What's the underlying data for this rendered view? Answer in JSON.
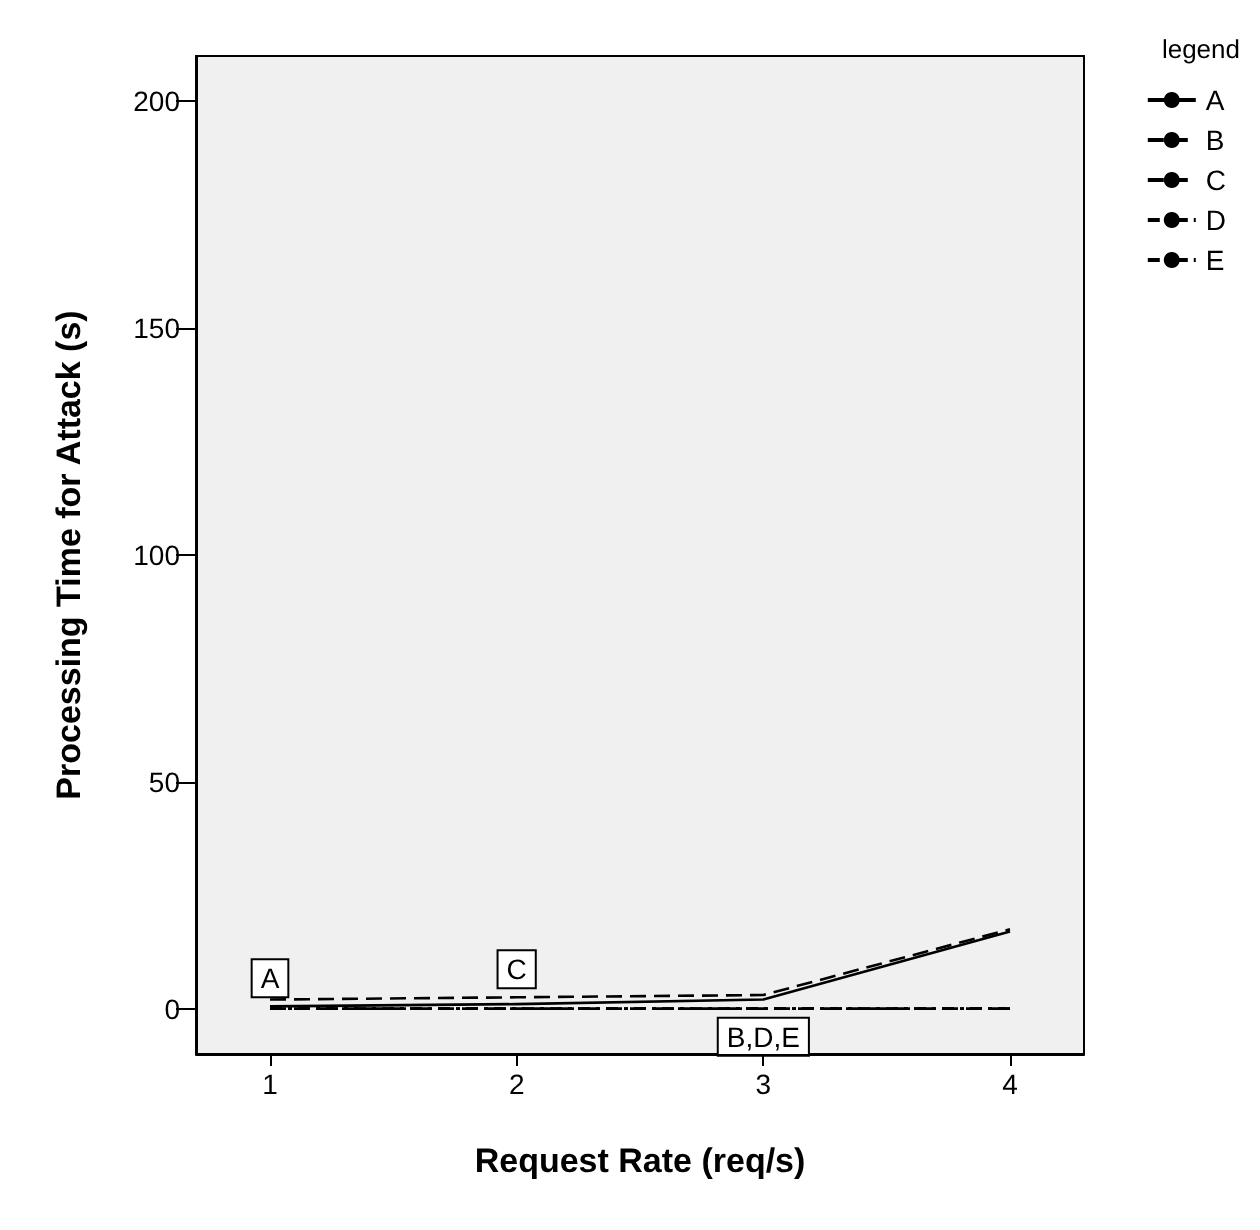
{
  "chart_data": {
    "type": "line",
    "xlabel": "Request Rate (req/s)",
    "ylabel": "Processing Time for Attack (s)",
    "legend_title": "legend",
    "legend": "top right",
    "x": [
      1,
      2,
      3,
      4
    ],
    "xlim": [
      0.7,
      4.3
    ],
    "xticks": [
      1,
      2,
      3,
      4
    ],
    "ylim": [
      -10,
      210
    ],
    "yticks": [
      0,
      50,
      100,
      150,
      200
    ],
    "grid": false,
    "series": [
      {
        "name": "A",
        "color": "#000000",
        "line_style": "solid",
        "values": [
          0.5,
          1,
          2,
          17
        ]
      },
      {
        "name": "B",
        "color": "#000000",
        "line_style": "dashed",
        "values": [
          0,
          0,
          0,
          0
        ]
      },
      {
        "name": "C",
        "color": "#000000",
        "line_style": "dashed",
        "values": [
          2,
          2.5,
          3,
          17.5
        ]
      },
      {
        "name": "D",
        "color": "#000000",
        "line_style": "dotted",
        "values": [
          0,
          0,
          0,
          0
        ]
      },
      {
        "name": "E",
        "color": "#000000",
        "line_style": "dotted",
        "values": [
          0,
          0,
          0,
          0
        ]
      }
    ],
    "annotations": [
      {
        "text": "A",
        "x": 1,
        "y": 0.5
      },
      {
        "text": "C",
        "x": 2,
        "y": 2.5
      },
      {
        "text": "B,D,E",
        "x": 3,
        "y": 0
      }
    ]
  }
}
